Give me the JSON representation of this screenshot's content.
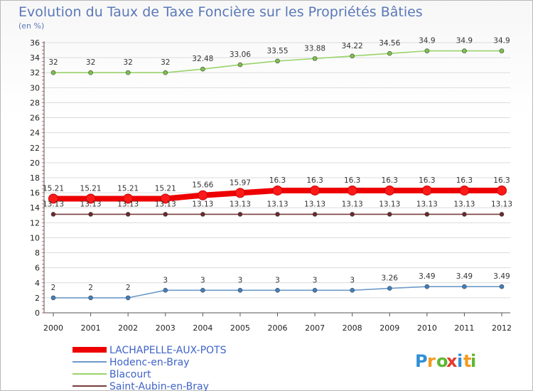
{
  "chart_data": {
    "type": "line",
    "title": "Evolution du Taux de Taxe Foncière sur les Propriétés Bâties",
    "subtitle": "(en %)",
    "x": [
      "2000",
      "2001",
      "2002",
      "2003",
      "2004",
      "2005",
      "2006",
      "2007",
      "2008",
      "2009",
      "2010",
      "2011",
      "2012"
    ],
    "ylim": [
      0,
      36
    ],
    "yticks": [
      0,
      2,
      4,
      6,
      8,
      10,
      12,
      14,
      16,
      18,
      20,
      22,
      24,
      26,
      28,
      30,
      32,
      34,
      36
    ],
    "grid": true,
    "legend_position": "bottom-left",
    "series": [
      {
        "name": "LACHAPELLE-AUX-POTS",
        "color": "#ee0000",
        "emphasis": true,
        "values": [
          15.21,
          15.21,
          15.21,
          15.21,
          15.66,
          15.97,
          16.3,
          16.3,
          16.3,
          16.3,
          16.3,
          16.3,
          16.3
        ],
        "labels": [
          "15.21",
          "15.21",
          "15.21",
          "15.21",
          "15.66",
          "15.97",
          "16.3",
          "16.3",
          "16.3",
          "16.3",
          "16.3",
          "16.3",
          "16.3"
        ]
      },
      {
        "name": "Hodenc-en-Bray",
        "color": "#6d9ac8",
        "point_color": "#3f7fc0",
        "values": [
          2,
          2,
          2,
          3,
          3,
          3,
          3,
          3,
          3,
          3.26,
          3.49,
          3.49,
          3.49
        ],
        "labels": [
          "2",
          "2",
          "2",
          "3",
          "3",
          "3",
          "3",
          "3",
          "3",
          "3.26",
          "3.49",
          "3.49",
          "3.49"
        ]
      },
      {
        "name": "Blacourt",
        "color": "#9ad36a",
        "point_color": "#7cc24a",
        "values": [
          32,
          32,
          32,
          32,
          32.48,
          33.06,
          33.55,
          33.88,
          34.22,
          34.56,
          34.9,
          34.9,
          34.9
        ],
        "labels": [
          "32",
          "32",
          "32",
          "32",
          "32.48",
          "33.06",
          "33.55",
          "33.88",
          "34.22",
          "34.56",
          "34.9",
          "34.9",
          "34.9"
        ]
      },
      {
        "name": "Saint-Aubin-en-Bray",
        "color": "#7a3c3c",
        "point_color": "#6a2a2a",
        "values": [
          13.13,
          13.13,
          13.13,
          13.13,
          13.13,
          13.13,
          13.13,
          13.13,
          13.13,
          13.13,
          13.13,
          13.13,
          13.13
        ],
        "labels": [
          "13.13",
          "13.13",
          "13.13",
          "13.13",
          "13.13",
          "13.13",
          "13.13",
          "13.13",
          "13.13",
          "13.13",
          "13.13",
          "13.13",
          "13.13"
        ]
      }
    ]
  },
  "brand": {
    "letters": [
      "P",
      "r",
      "o",
      "x",
      "i",
      "t",
      "i"
    ],
    "colors": [
      "#2f8fd6",
      "#f39a1e",
      "#5cb833",
      "#e53a2c",
      "#2f8fd6",
      "#f39a1e",
      "#5cb833"
    ]
  }
}
